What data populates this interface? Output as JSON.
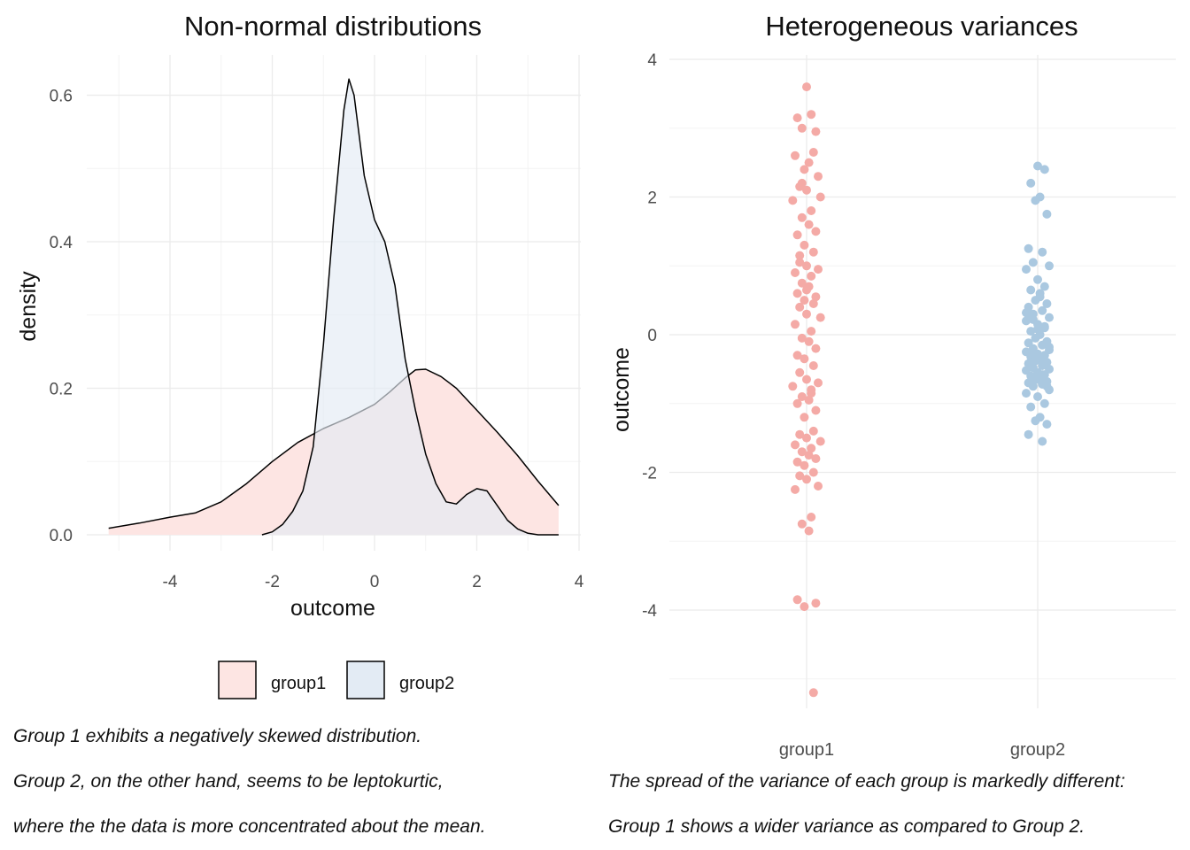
{
  "colors": {
    "group1_fill": "#fde5e3",
    "group2_fill": "#e3ebf4",
    "group1_point": "#f4aaa6",
    "group2_point": "#aac8e0",
    "grid": "#ebebeb",
    "outline": "#000000"
  },
  "captions": {
    "left": [
      "Group 1 exhibits a negatively skewed distribution.",
      "Group 2, on the other hand, seems to be leptokurtic,",
      "where the the data is more concentrated about the mean."
    ],
    "right": [
      "The spread of the variance of each group is markedly different:",
      "Group 1 shows a wider variance as compared to Group 2."
    ]
  },
  "chart_data": [
    {
      "type": "area",
      "title": "Non-normal distributions",
      "xlabel": "outcome",
      "ylabel": "density",
      "xlim": [
        -5.2,
        4.0
      ],
      "ylim": [
        0,
        0.62
      ],
      "x_ticks": [
        -4,
        -2,
        0,
        2,
        4
      ],
      "y_ticks": [
        0.0,
        0.2,
        0.4,
        0.6
      ],
      "x_tick_labels": [
        "-4",
        "-2",
        "0",
        "2",
        "4"
      ],
      "y_tick_labels": [
        "0.0",
        "0.2",
        "0.4",
        "0.6"
      ],
      "grid": true,
      "legend_position": "bottom",
      "legend": [
        "group1",
        "group2"
      ],
      "series": [
        {
          "name": "group1",
          "x": [
            -5.2,
            -4.6,
            -4.0,
            -3.5,
            -3.0,
            -2.5,
            -2.0,
            -1.5,
            -1.0,
            -0.5,
            0.0,
            0.3,
            0.6,
            0.8,
            1.0,
            1.3,
            1.6,
            2.0,
            2.4,
            2.8,
            3.2,
            3.6
          ],
          "y": [
            0.009,
            0.016,
            0.024,
            0.03,
            0.045,
            0.07,
            0.1,
            0.126,
            0.145,
            0.16,
            0.178,
            0.195,
            0.214,
            0.225,
            0.226,
            0.216,
            0.2,
            0.17,
            0.14,
            0.108,
            0.073,
            0.04
          ]
        },
        {
          "name": "group2",
          "x": [
            -2.2,
            -2.0,
            -1.8,
            -1.6,
            -1.4,
            -1.2,
            -1.0,
            -0.8,
            -0.6,
            -0.5,
            -0.4,
            -0.2,
            0.0,
            0.2,
            0.4,
            0.6,
            0.8,
            1.0,
            1.2,
            1.4,
            1.6,
            1.8,
            2.0,
            2.2,
            2.4,
            2.6,
            2.8,
            3.0,
            3.2,
            3.6
          ],
          "y": [
            0.0,
            0.004,
            0.014,
            0.032,
            0.06,
            0.12,
            0.26,
            0.43,
            0.58,
            0.622,
            0.6,
            0.49,
            0.43,
            0.4,
            0.34,
            0.24,
            0.17,
            0.11,
            0.07,
            0.045,
            0.042,
            0.055,
            0.063,
            0.06,
            0.04,
            0.02,
            0.008,
            0.002,
            0.0,
            0.0
          ]
        }
      ]
    },
    {
      "type": "scatter",
      "title": "Heterogeneous variances",
      "xlabel": "",
      "ylabel": "outcome",
      "categories": [
        "group1",
        "group2"
      ],
      "ylim": [
        -5.4,
        4.0
      ],
      "y_ticks": [
        -4,
        -2,
        0,
        2,
        4
      ],
      "y_tick_labels": [
        "-4",
        "-2",
        "0",
        "2",
        "4"
      ],
      "grid": true,
      "series": [
        {
          "name": "group1",
          "x": [
            1.0,
            1.02,
            0.96,
            0.98,
            1.04,
            1.03,
            0.95,
            1.01,
            0.99,
            1.05,
            0.97,
            1.0,
            1.06,
            0.94,
            1.02,
            0.98,
            1.01,
            1.04,
            0.96,
            0.99,
            1.03,
            0.97,
            1.0,
            1.05,
            0.95,
            1.02,
            0.98,
            1.01,
            0.96,
            1.04,
            0.99,
            1.03,
            0.97,
            1.0,
            1.06,
            0.95,
            1.02,
            0.98,
            1.01,
            1.04,
            0.96,
            0.99,
            1.03,
            0.97,
            1.0,
            1.05,
            0.94,
            1.02,
            0.98,
            1.01,
            0.96,
            1.04,
            0.99,
            1.03,
            0.97,
            1.0,
            1.06,
            0.95,
            1.02,
            0.98,
            1.01,
            1.04,
            0.96,
            0.99,
            1.03,
            0.97,
            1.0,
            1.05,
            0.95,
            1.02,
            0.98,
            1.01,
            0.96,
            1.04,
            0.99,
            1.03,
            0.97,
            1.0,
            1.02,
            0.98
          ],
          "y": [
            3.6,
            3.2,
            3.15,
            3.0,
            2.95,
            2.65,
            2.6,
            2.5,
            2.4,
            2.3,
            2.15,
            2.1,
            2.0,
            1.95,
            1.8,
            1.7,
            1.6,
            1.5,
            1.45,
            1.3,
            1.2,
            1.05,
            1.0,
            0.95,
            0.9,
            0.85,
            0.75,
            0.7,
            0.6,
            0.55,
            0.5,
            0.45,
            0.4,
            0.3,
            0.25,
            0.15,
            0.05,
            -0.05,
            -0.1,
            -0.2,
            -0.3,
            -0.35,
            -0.45,
            -0.55,
            -0.65,
            -0.7,
            -0.75,
            -0.8,
            -0.9,
            -0.95,
            -1.0,
            -1.1,
            -1.2,
            -1.4,
            -1.45,
            -1.5,
            -1.55,
            -1.6,
            -1.65,
            -1.7,
            -1.75,
            -1.8,
            -1.85,
            -1.9,
            -2.0,
            -2.05,
            -2.1,
            -2.2,
            -2.25,
            -2.65,
            -2.75,
            -2.85,
            -3.85,
            -3.9,
            -3.95,
            -5.2,
            1.15,
            0.65,
            -0.85,
            2.2
          ]
        },
        {
          "name": "group2",
          "x": [
            2.0,
            2.03,
            1.97,
            2.01,
            1.99,
            2.04,
            1.96,
            2.02,
            1.98,
            2.05,
            1.95,
            2.0,
            2.03,
            1.97,
            2.01,
            1.99,
            2.04,
            1.96,
            2.02,
            1.98,
            2.05,
            1.95,
            2.0,
            2.03,
            1.97,
            2.01,
            1.99,
            2.04,
            1.96,
            2.02,
            1.98,
            2.05,
            1.95,
            2.0,
            2.03,
            1.97,
            2.01,
            1.99,
            2.04,
            1.96,
            2.02,
            1.98,
            2.05,
            1.95,
            2.0,
            2.03,
            1.97,
            2.01,
            1.99,
            2.04,
            1.96,
            2.02,
            1.98,
            2.05,
            1.95,
            2.0,
            2.03,
            1.97,
            2.01,
            1.99,
            2.04,
            1.96,
            2.02,
            1.98,
            2.05,
            1.95,
            2.0,
            2.03,
            1.97,
            2.01,
            1.99,
            2.04,
            1.96,
            2.02,
            1.98,
            2.0
          ],
          "y": [
            2.45,
            2.4,
            2.2,
            2.0,
            1.95,
            1.75,
            1.25,
            1.2,
            1.05,
            1.0,
            0.95,
            0.8,
            0.7,
            0.65,
            0.6,
            0.5,
            0.45,
            0.4,
            0.35,
            0.3,
            0.25,
            0.2,
            0.15,
            0.1,
            0.05,
            0.0,
            -0.05,
            -0.1,
            -0.12,
            -0.15,
            -0.2,
            -0.22,
            -0.25,
            -0.28,
            -0.3,
            -0.32,
            -0.35,
            -0.38,
            -0.4,
            -0.42,
            -0.45,
            -0.48,
            -0.5,
            -0.52,
            -0.55,
            -0.58,
            -0.6,
            -0.62,
            -0.65,
            -0.68,
            -0.7,
            -0.72,
            -0.75,
            -0.8,
            -0.85,
            -0.9,
            -1.0,
            -1.05,
            -1.2,
            -1.25,
            -1.3,
            -1.45,
            -1.55,
            0.22,
            -0.18,
            0.32,
            -0.65,
            0.12,
            -0.42,
            0.55,
            -0.35,
            -0.75,
            0.28,
            -0.58,
            -0.28,
            0.08
          ]
        }
      ]
    }
  ]
}
